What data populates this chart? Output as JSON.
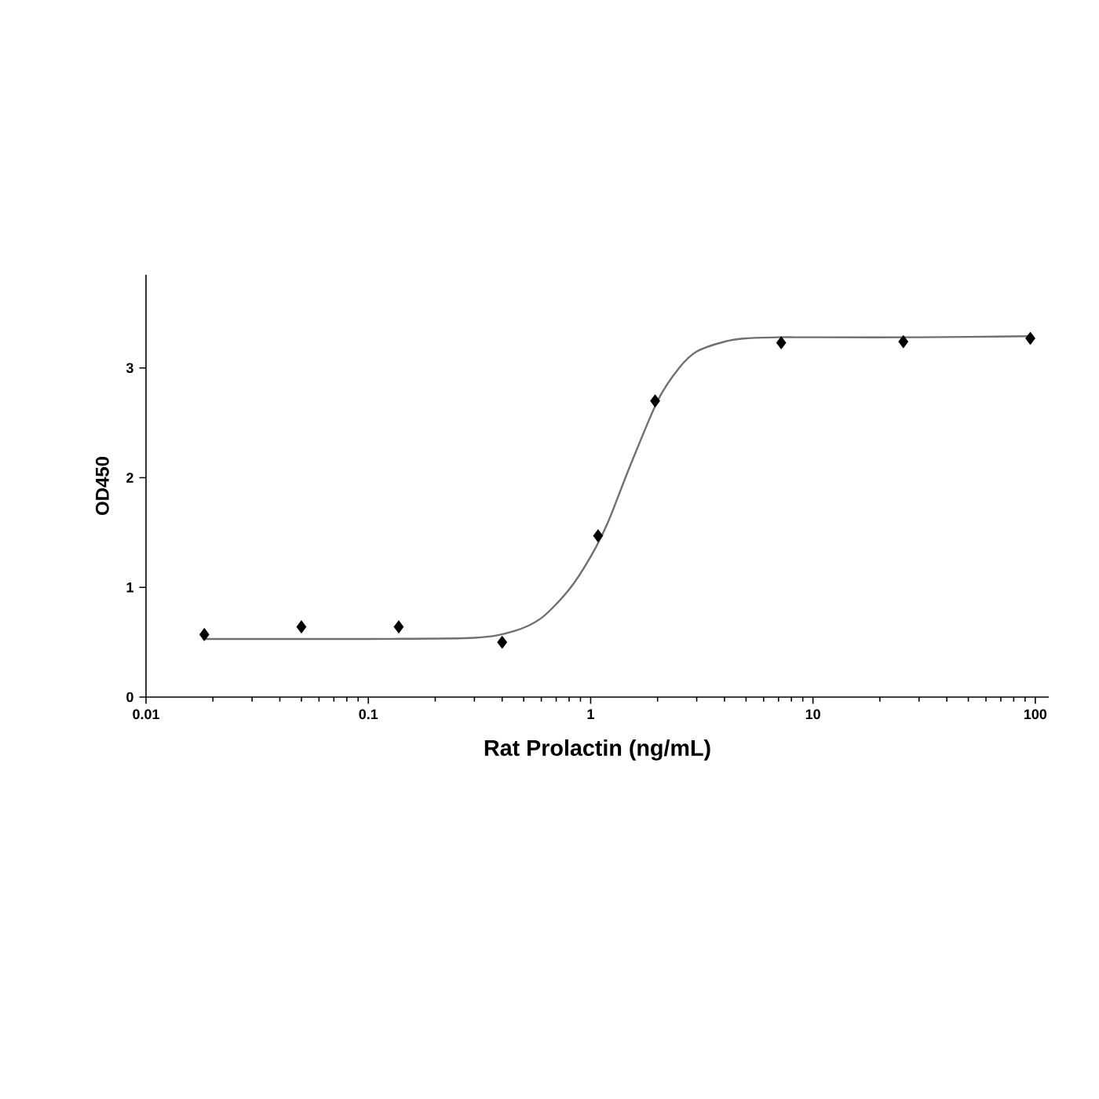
{
  "chart_data": {
    "type": "scatter",
    "xlabel": "Rat Prolactin (ng/mL)",
    "ylabel": "OD450",
    "log": "x",
    "xlim": [
      0.01,
      115
    ],
    "ylim": [
      0,
      3.85
    ],
    "xticks": [
      0.01,
      0.1,
      1,
      10,
      100
    ],
    "yticks": [
      0,
      1,
      2,
      3
    ],
    "grid": false,
    "series": [
      {
        "type": "line",
        "color": "#707070",
        "marker": "none",
        "x": [
          0.018,
          0.1,
          0.3,
          0.45,
          0.6,
          0.8,
          1.0,
          1.2,
          1.5,
          2.0,
          2.5,
          3.0,
          4.0,
          5.0,
          7.0,
          10,
          30,
          95
        ],
        "values": [
          0.53,
          0.53,
          0.54,
          0.6,
          0.72,
          0.98,
          1.28,
          1.6,
          2.1,
          2.7,
          3.0,
          3.15,
          3.24,
          3.27,
          3.28,
          3.28,
          3.28,
          3.29
        ]
      },
      {
        "color": "#000000",
        "marker": "diamond",
        "x": [
          0.0183,
          0.05,
          0.137,
          0.4,
          1.08,
          1.95,
          7.2,
          25.5,
          95
        ],
        "values": [
          0.57,
          0.64,
          0.64,
          0.5,
          1.47,
          2.7,
          3.23,
          3.24,
          3.27
        ]
      }
    ]
  }
}
